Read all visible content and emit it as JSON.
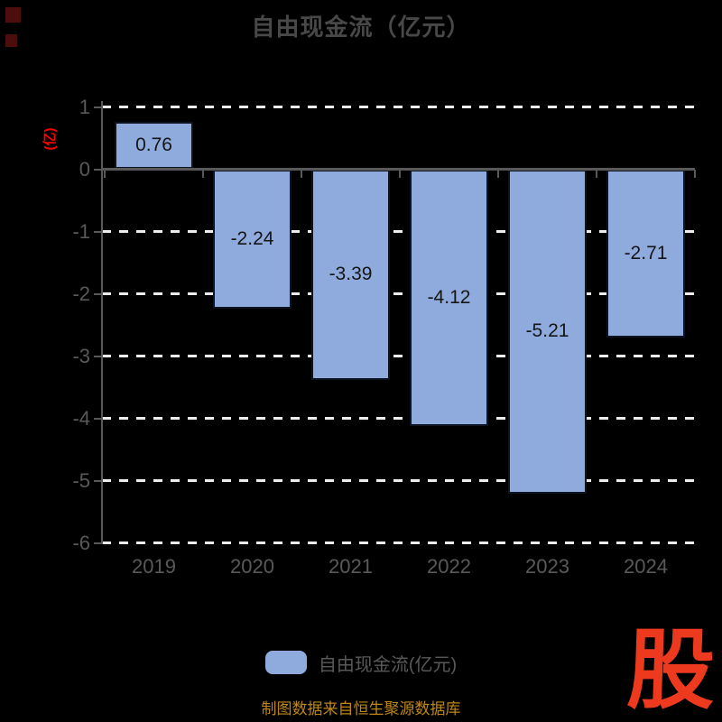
{
  "page": {
    "background": "#000000"
  },
  "title": {
    "text": "自由现金流（亿元）",
    "color": "#484848"
  },
  "y_axis": {
    "unit_label": "(亿)",
    "unit_label_color": "#fe0000",
    "tick_label_color": "#595959"
  },
  "chart_data": {
    "type": "bar",
    "title": "自由现金流（亿元）",
    "categories": [
      "2019",
      "2020",
      "2021",
      "2022",
      "2023",
      "2024"
    ],
    "values": [
      0.76,
      -2.24,
      -3.39,
      -4.12,
      -5.21,
      -2.71
    ],
    "value_labels": [
      "0.76",
      "-2.24",
      "-3.39",
      "-4.12",
      "-5.21",
      "-2.71"
    ],
    "xlabel": "",
    "ylabel": "(亿)",
    "ylim": [
      -6,
      1
    ],
    "yticks": [
      1,
      0,
      -1,
      -2,
      -3,
      -4,
      -5,
      -6
    ],
    "grid": "horizontal-dashed-white",
    "legend_position": "bottom",
    "colors": {
      "bar_fill": "#8faadc",
      "bar_border": "#0d1320",
      "axis": "#595959",
      "gridline": "#ededed",
      "value_label": "#151515",
      "tick_label": "#595959"
    }
  },
  "legend": {
    "label": "自由现金流(亿元)",
    "swatch_color": "#8faadc",
    "text_color": "#595959"
  },
  "footer": {
    "source_text": "制图数据来自恒生聚源数据库",
    "color": "#bd8712"
  },
  "logo": {
    "text": "股",
    "color": "#ed3a1f"
  }
}
